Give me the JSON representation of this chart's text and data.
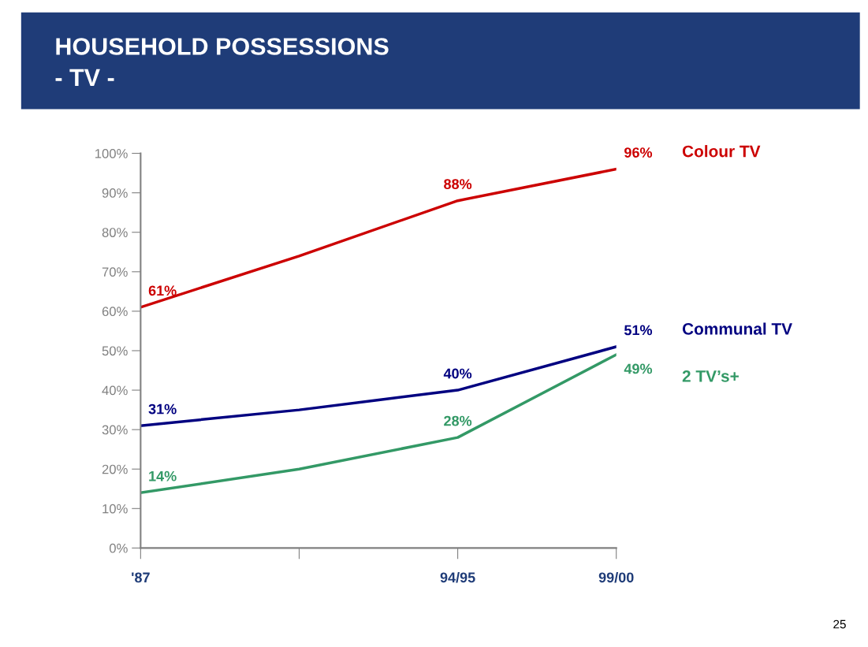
{
  "chart_data": {
    "type": "line",
    "title": "HOUSEHOLD POSSESSIONS",
    "subtitle": "- TV -",
    "categories": [
      "'87",
      null,
      "94/95",
      "99/00"
    ],
    "series": [
      {
        "name": "Colour TV",
        "color": "#cc0000",
        "values": [
          61,
          74,
          88,
          96
        ],
        "value_labels": [
          "61%",
          null,
          "88%",
          "96%"
        ]
      },
      {
        "name": "Communal TV",
        "color": "#000080",
        "values": [
          31,
          35,
          40,
          51
        ],
        "value_labels": [
          "31%",
          null,
          "40%",
          "51%"
        ]
      },
      {
        "name": "2 TV’s+",
        "color": "#339966",
        "values": [
          14,
          20,
          28,
          49
        ],
        "value_labels": [
          "14%",
          null,
          "28%",
          "49%"
        ]
      }
    ],
    "ylim": [
      0,
      100
    ],
    "yticks": [
      {
        "value": 0,
        "label": "0%"
      },
      {
        "value": 10,
        "label": "10%"
      },
      {
        "value": 20,
        "label": "20%"
      },
      {
        "value": 30,
        "label": "30%"
      },
      {
        "value": 40,
        "label": "40%"
      },
      {
        "value": 50,
        "label": "50%"
      },
      {
        "value": 60,
        "label": "60%"
      },
      {
        "value": 70,
        "label": "70%"
      },
      {
        "value": 80,
        "label": "80%"
      },
      {
        "value": 90,
        "label": "90%"
      },
      {
        "value": 100,
        "label": "100%"
      }
    ],
    "grid": false,
    "legend": false,
    "marker": "none",
    "line_style": "solid",
    "annotations": [
      "25"
    ]
  }
}
